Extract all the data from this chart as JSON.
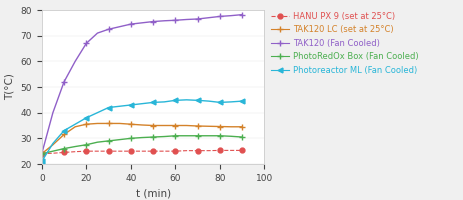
{
  "xlabel": "t (min)",
  "ylabel": "T(°C)",
  "xlim": [
    0,
    100
  ],
  "ylim": [
    20,
    80
  ],
  "yticks": [
    20,
    30,
    40,
    50,
    60,
    70,
    80
  ],
  "xticks": [
    0,
    20,
    40,
    60,
    80,
    100
  ],
  "series": [
    {
      "label": "HANU PX 9 (set at 25°C)",
      "color": "#E05050",
      "marker": "o",
      "markersize": 3.5,
      "linestyle": "--",
      "linewidth": 0.8,
      "x": [
        0,
        5,
        10,
        15,
        20,
        25,
        30,
        35,
        40,
        45,
        50,
        55,
        60,
        65,
        70,
        75,
        80,
        85,
        90
      ],
      "y": [
        24.0,
        24.2,
        24.5,
        24.8,
        25.0,
        25.0,
        25.0,
        25.0,
        25.0,
        25.0,
        25.0,
        25.0,
        25.0,
        25.2,
        25.2,
        25.2,
        25.3,
        25.3,
        25.3
      ]
    },
    {
      "label": "TAK120 LC (set at 25°C)",
      "color": "#D4822A",
      "marker": "+",
      "markersize": 5,
      "linestyle": "-",
      "linewidth": 1.0,
      "x": [
        0,
        5,
        10,
        15,
        20,
        25,
        30,
        35,
        40,
        45,
        50,
        55,
        60,
        65,
        70,
        75,
        80,
        85,
        90
      ],
      "y": [
        24.0,
        27.5,
        31.5,
        34.5,
        35.5,
        35.8,
        35.8,
        35.8,
        35.5,
        35.2,
        35.0,
        35.0,
        35.0,
        35.0,
        34.8,
        34.7,
        34.6,
        34.5,
        34.5
      ]
    },
    {
      "label": "TAK120 (Fan Cooled)",
      "color": "#9060C8",
      "marker": "+",
      "markersize": 5,
      "linestyle": "-",
      "linewidth": 1.0,
      "x": [
        0,
        5,
        10,
        15,
        20,
        25,
        30,
        35,
        40,
        45,
        50,
        55,
        60,
        65,
        70,
        75,
        80,
        85,
        90
      ],
      "y": [
        24.0,
        40.0,
        52.0,
        60.0,
        67.0,
        71.0,
        72.5,
        73.5,
        74.5,
        75.0,
        75.5,
        75.8,
        76.0,
        76.3,
        76.5,
        77.0,
        77.5,
        77.8,
        78.2
      ]
    },
    {
      "label": "PhotoRedOx Box (Fan Cooled)",
      "color": "#4CAF50",
      "marker": "+",
      "markersize": 5,
      "linestyle": "-",
      "linewidth": 1.0,
      "x": [
        0,
        5,
        10,
        15,
        20,
        25,
        30,
        35,
        40,
        45,
        50,
        55,
        60,
        65,
        70,
        75,
        80,
        85,
        90
      ],
      "y": [
        24.0,
        25.0,
        26.0,
        26.8,
        27.5,
        28.5,
        29.0,
        29.5,
        30.0,
        30.3,
        30.5,
        30.7,
        31.0,
        31.0,
        31.0,
        31.0,
        31.0,
        30.8,
        30.5
      ]
    },
    {
      "label": "Photoreactor ML (Fan Cooled)",
      "color": "#29B6D8",
      "marker": "<",
      "markersize": 3.5,
      "linestyle": "-",
      "linewidth": 1.0,
      "x": [
        0,
        5,
        10,
        15,
        20,
        25,
        30,
        35,
        40,
        45,
        50,
        55,
        60,
        65,
        70,
        75,
        80,
        85,
        90
      ],
      "y": [
        21.0,
        28.0,
        33.0,
        35.5,
        38.0,
        40.0,
        42.0,
        42.5,
        43.0,
        43.5,
        44.0,
        44.2,
        44.8,
        45.0,
        44.8,
        44.5,
        44.0,
        44.2,
        44.5
      ]
    }
  ],
  "legend_fontsize": 6.0,
  "axis_fontsize": 7.5,
  "tick_fontsize": 6.5,
  "bg_color": "#F0F0F0",
  "plot_bg_color": "#FFFFFF"
}
